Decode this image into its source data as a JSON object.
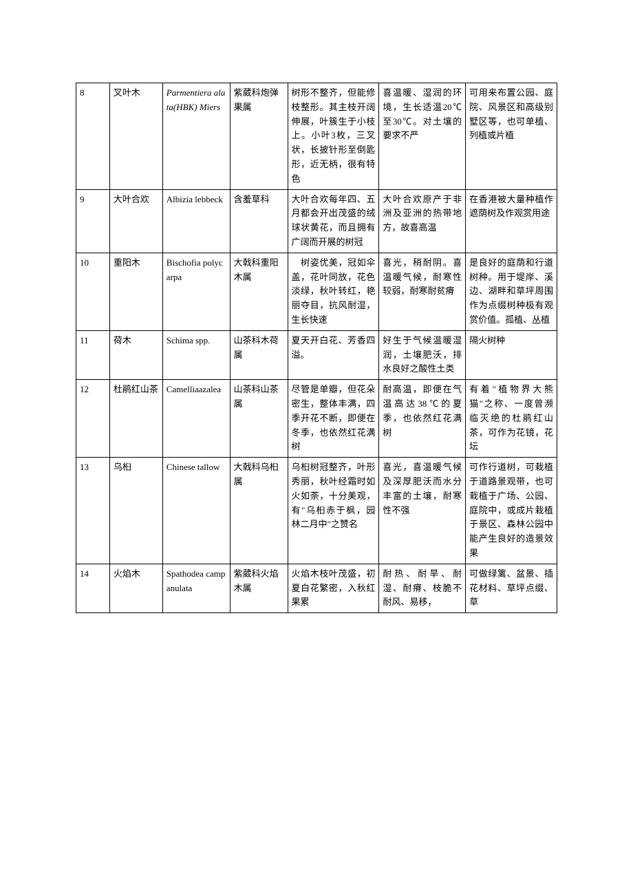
{
  "table": {
    "colors": {
      "border": "#000000",
      "text": "#000000",
      "background": "#ffffff"
    },
    "font": {
      "family": "SimSun",
      "size_pt": 10,
      "line_height": 1.6
    },
    "column_widths_percent": [
      7,
      11,
      14,
      12,
      19,
      18,
      19
    ],
    "rows": [
      {
        "num": "8",
        "name": "叉叶木",
        "latin": "Parmentiera alata(HBK) Miers",
        "latin_italic": true,
        "family": "紫葳科炮弹果属",
        "desc": "树形不整齐，但能修枝整形。其主枝开阔伸展，叶簇生于小枝上。小叶3枚，三叉状，长披针形至倒匙形，近无柄，很有特色",
        "habit": "喜温暖、湿润的环境，生长适温20℃至30℃。对土壤的要求不严",
        "use": "可用来布置公园、庭院、风景区和高级别墅区等，也可单植、列植或片植"
      },
      {
        "num": "9",
        "name": "大叶合欢",
        "latin": "Albizia lebbeck",
        "latin_italic": false,
        "family": "含羞草科",
        "desc": "大叶合欢每年四、五月都会开出茂盛的绒球状黄花，而且拥有广阔而开展的树冠",
        "habit": "大叶合欢原产于非洲及亚洲的热带地方，故喜高温",
        "use": "在香港被大量种植作遮荫树及作观赏用途"
      },
      {
        "num": "10",
        "name": "重阳木",
        "latin": "Bischofia polycarpa",
        "latin_italic": false,
        "family": "大戟科重阳木属",
        "desc": "　树姿优美，冠如伞盖，花叶同放，花色淡绿，秋叶转红，艳丽夺目，抗风耐湿，生长快速",
        "habit": "喜光，稍耐阴。喜温暖气候，耐寒性较弱，耐寒耐贫瘠",
        "use": "是良好的庭荫和行道树种。用于堤岸、溪边、湖畔和草坪周围作为点缀树种极有观赏价值。孤植、丛植"
      },
      {
        "num": "11",
        "name": "荷木",
        "latin": "Schima spp.",
        "latin_italic": false,
        "family": "山茶科木荷属",
        "desc": "夏天开白花、芳香四溢。",
        "habit": "好生于气候温暖湿润，土壤肥沃，排水良好之酸性土类",
        "use": "隔火树种"
      },
      {
        "num": "12",
        "name": "杜鹃红山茶",
        "latin": "Camelliaazalea",
        "latin_italic": false,
        "family": "山茶科山茶属",
        "desc": "尽管是单瓣，但花朵密生，整体丰满，四季开花不断，即便在冬季，也依然红花满树",
        "habit": "耐高温，即便在气温高达38℃的夏季，也依然红花满树",
        "use": "有着\"植物界大熊猫\"之称、一度曾濒临灭绝的杜鹃红山茶，可作为花镜，花坛"
      },
      {
        "num": "13",
        "name": "乌桕",
        "latin": "Chinese tallow",
        "latin_italic": false,
        "family": "大戟科乌桕属",
        "desc": "乌桕树冠整齐，叶形秀丽，秋叶经霜时如火如荼，十分美观，有\"乌桕赤于枫，园林二月中\"之赞名",
        "habit": "喜光，喜温暖气候及深厚肥沃而水分丰富的土壤，耐寒性不强",
        "use": "可作行道树，可栽植于道路景观带，也可栽植于广场、公园、庭院中，或成片栽植于景区、森林公园中能产生良好的造景效果"
      },
      {
        "num": "14",
        "name": "火焰木",
        "latin": "Spathodea campanulata",
        "latin_italic": false,
        "family": "紫葳科火焰木属",
        "desc": "火焰木枝叶茂盛，初夏白花繁密，入秋红果累",
        "habit": "耐热、耐旱、耐湿、耐瘠、枝脆不耐风、易移，",
        "use": "可做绿篱、盆景、插花材料、草坪点缀、草"
      }
    ]
  }
}
